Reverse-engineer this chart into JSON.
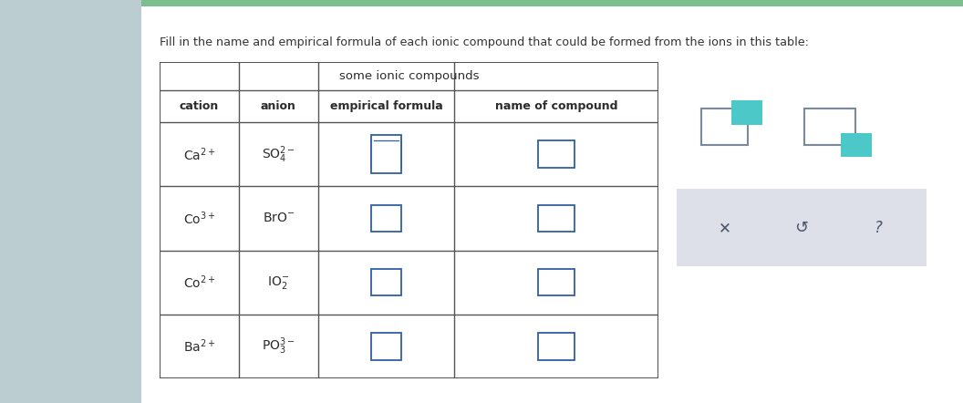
{
  "title_text": "Fill in the name and empirical formula of each ionic compound that could be formed from the ions in this table:",
  "table_title": "some ionic compounds",
  "col_headers": [
    "cation",
    "anion",
    "empirical formula",
    "name of compound"
  ],
  "rows": [
    {
      "cation": "Ca$^{2+}$",
      "anion": "SO$_4^{2-}$"
    },
    {
      "cation": "Co$^{3+}$",
      "anion": "BrO$^{-}$"
    },
    {
      "cation": "Co$^{2+}$",
      "anion": "IO$_2^{-}$"
    },
    {
      "cation": "Ba$^{2+}$",
      "anion": "PO$_3^{3-}$"
    }
  ],
  "bg_color": "#ffffff",
  "sidebar_color": "#bccdd1",
  "top_strip_color": "#7bbf8e",
  "table_bg": "#ffffff",
  "border_color": "#555555",
  "text_color": "#2c2c2c",
  "title_color": "#333333",
  "input_box_color": "#2e5fa3",
  "side_panel_bg": "#ffffff",
  "side_panel_border": "#b0b8c8",
  "teal_color": "#4dc8c8",
  "gray_box_color": "#7a8a9a",
  "button_bar_color": "#dde0e8",
  "button_text_color": "#4a5568"
}
